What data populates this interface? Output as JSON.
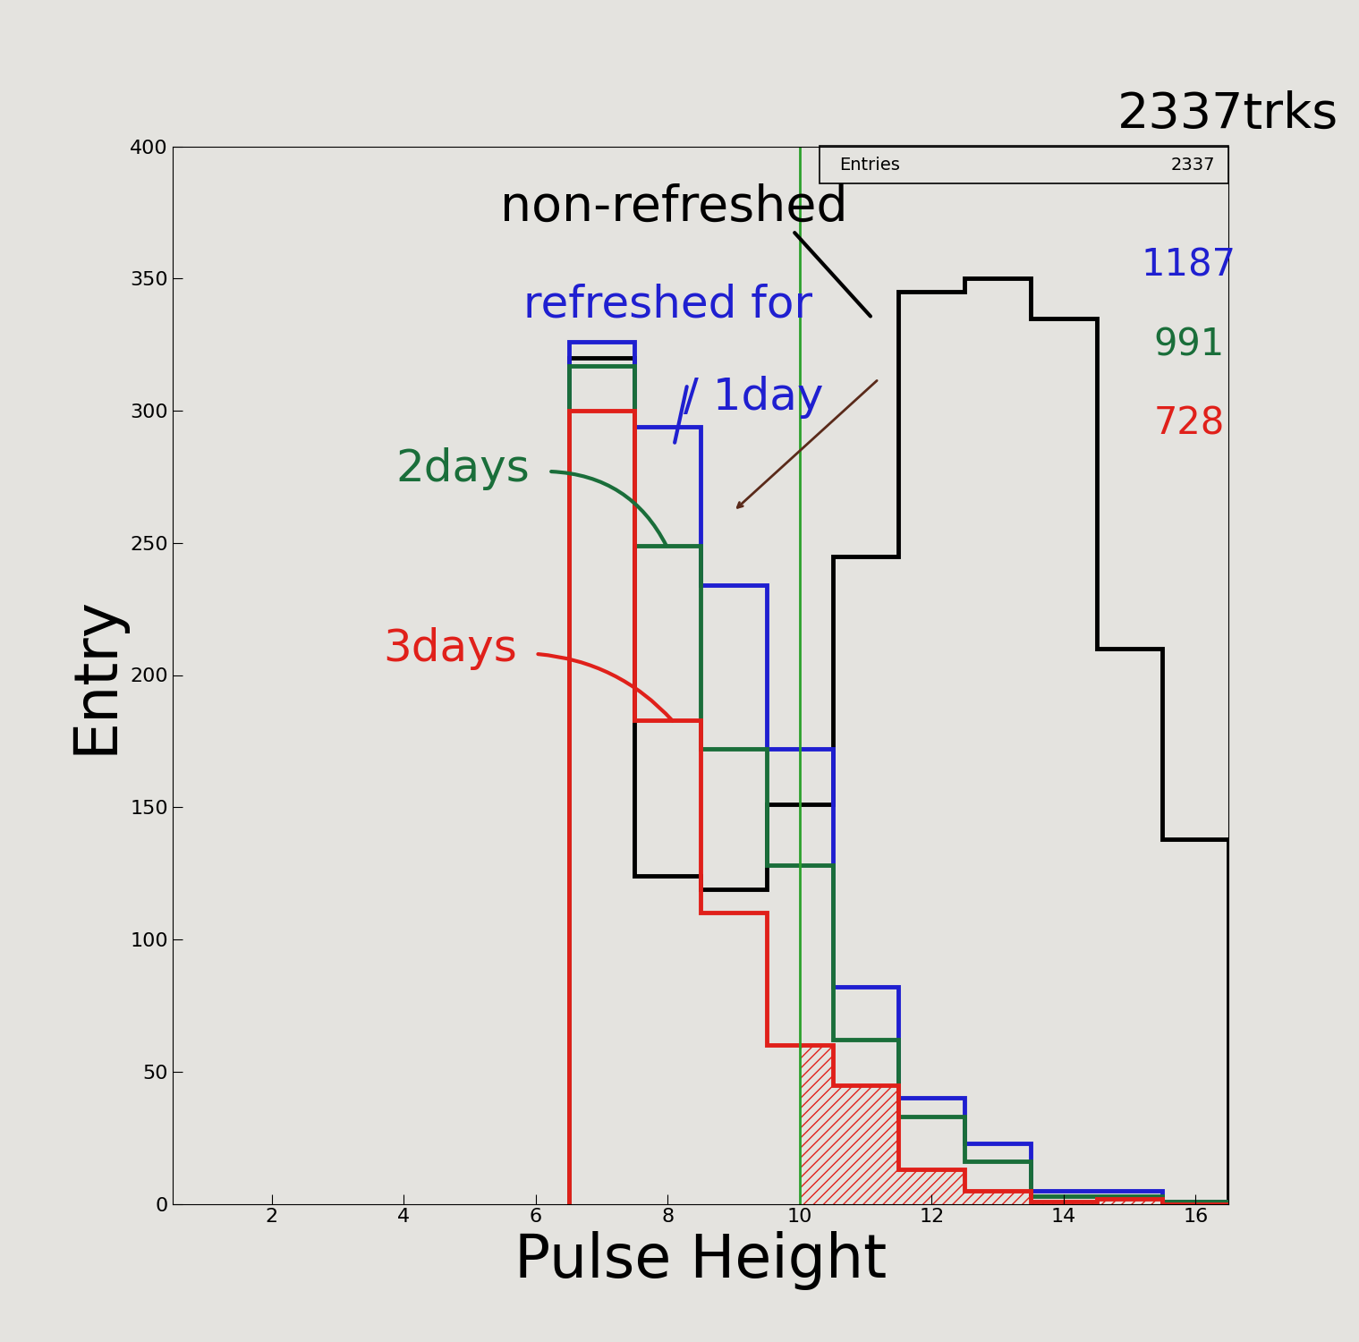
{
  "chart_data": {
    "type": "histogram",
    "x_label": "Pulse Height",
    "y_label": "Entry",
    "bins": [
      6.5,
      7.5,
      8.5,
      9.5,
      10.5,
      11.5,
      12.5,
      13.5,
      14.5,
      15.5,
      16.5
    ],
    "series": [
      {
        "name": "non-refreshed",
        "color": "#000000",
        "entries": 2337,
        "values": [
          320,
          124,
          119,
          151,
          245,
          345,
          350,
          335,
          210,
          138
        ]
      },
      {
        "name": "refreshed for / 1day",
        "color": "#1f1fd0",
        "entries": 1187,
        "values": [
          326,
          294,
          234,
          172,
          82,
          40,
          23,
          5,
          5,
          1
        ]
      },
      {
        "name": "2days",
        "color": "#1a6e3a",
        "entries": 991,
        "values": [
          317,
          249,
          172,
          128,
          62,
          33,
          16,
          3,
          3,
          1
        ]
      },
      {
        "name": "3days",
        "color": "#e0201a",
        "entries": 728,
        "values": [
          300,
          183,
          110,
          60,
          45,
          13,
          5,
          1,
          2,
          0
        ]
      }
    ],
    "cut_line": {
      "value": 10,
      "color": "#2ca02c"
    },
    "annotation": "2337trks",
    "stats_box": {
      "label": "Entries",
      "value": 2337
    },
    "xlim": [
      0.5,
      16.5
    ],
    "ylim": [
      0,
      400
    ],
    "xticks": [
      2,
      4,
      6,
      8,
      10,
      12,
      14,
      16
    ],
    "yticks": [
      0,
      50,
      100,
      150,
      200,
      250,
      300,
      350,
      400
    ]
  }
}
